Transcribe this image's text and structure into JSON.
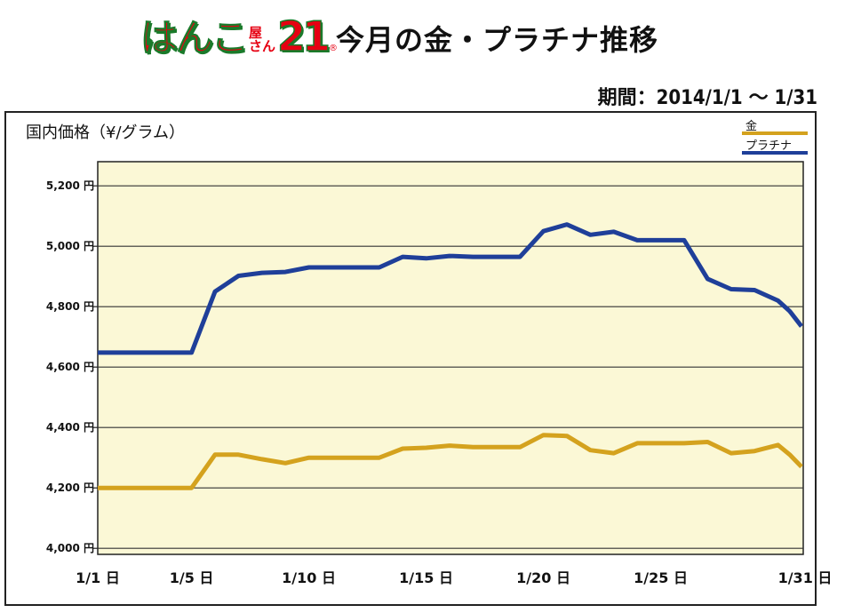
{
  "header": {
    "logo_main": "はんこ",
    "logo_small_top": "屋",
    "logo_small_bottom": "さん",
    "logo_num": "21",
    "logo_reg": "®",
    "title": "今月の金・プラチナ推移",
    "period": "期間：2014/1/1 〜 1/31"
  },
  "colors": {
    "plot_background": "#fbf8d6",
    "gold": "#d4a21e",
    "platinum": "#1f3f99",
    "gridline": "#333333"
  },
  "chart_data": {
    "type": "line",
    "ylabel": "国内価格（¥/グラム）",
    "ylim": [
      3980,
      5280
    ],
    "y_ticks": [
      4000,
      4200,
      4400,
      4600,
      4800,
      5000,
      5200
    ],
    "y_tick_labels": [
      "4,000 円",
      "4,200 円",
      "4,400 円",
      "4,600 円",
      "4,800 円",
      "5,000 円",
      "5,200 円"
    ],
    "xlim": [
      1,
      31
    ],
    "x_ticks": [
      1,
      5,
      10,
      15,
      20,
      25,
      31
    ],
    "x_tick_labels": [
      "1/1 日",
      "1/5 日",
      "1/10 日",
      "1/15 日",
      "1/20 日",
      "1/25 日",
      "1/31 日"
    ],
    "legend_position": "top-right",
    "grid": "horizontal",
    "series": [
      {
        "name": "金",
        "color": "#d4a21e",
        "x": [
          1,
          2,
          3,
          4,
          5,
          6,
          7,
          8,
          9,
          10,
          11,
          12,
          13,
          14,
          15,
          16,
          17,
          18,
          19,
          20,
          21,
          22,
          23,
          24,
          25,
          26,
          27,
          28,
          29,
          30,
          30.5,
          31
        ],
        "values": [
          4200,
          4200,
          4200,
          4200,
          4200,
          4310,
          4310,
          4295,
          4282,
          4300,
          4300,
          4300,
          4300,
          4330,
          4333,
          4340,
          4335,
          4335,
          4335,
          4375,
          4372,
          4325,
          4315,
          4348,
          4348,
          4348,
          4352,
          4315,
          4322,
          4342,
          4310,
          4270
        ]
      },
      {
        "name": "プラチナ",
        "color": "#1f3f99",
        "x": [
          1,
          2,
          3,
          4,
          5,
          6,
          7,
          8,
          9,
          10,
          11,
          12,
          13,
          14,
          15,
          16,
          17,
          18,
          19,
          20,
          21,
          22,
          23,
          24,
          25,
          26,
          27,
          28,
          29,
          30,
          30.5,
          31
        ],
        "values": [
          4648,
          4648,
          4648,
          4648,
          4648,
          4850,
          4902,
          4912,
          4915,
          4930,
          4930,
          4930,
          4930,
          4965,
          4960,
          4968,
          4965,
          4965,
          4965,
          5050,
          5072,
          5038,
          5048,
          5020,
          5020,
          5020,
          4892,
          4858,
          4855,
          4820,
          4785,
          4735
        ]
      }
    ]
  }
}
